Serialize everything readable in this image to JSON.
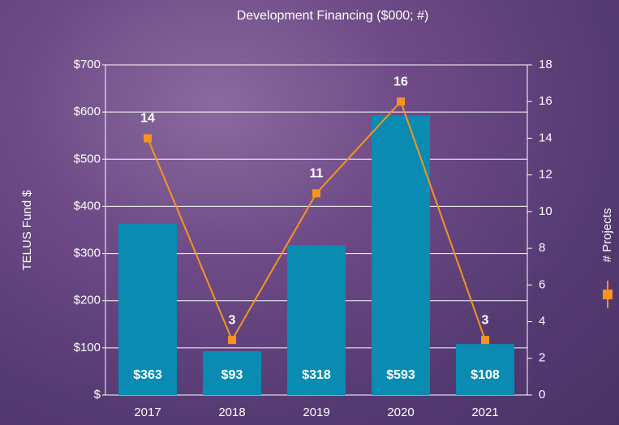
{
  "chart_data": {
    "type": "bar-line",
    "title": "Development Financing ($000; #)",
    "y_label": "TELUS Fund $",
    "categories": [
      "2017",
      "2018",
      "2019",
      "2020",
      "2021"
    ],
    "series": [
      {
        "type": "bar",
        "color": "#0a8bb2",
        "values": [
          363,
          93,
          318,
          593,
          108
        ],
        "value_labels": [
          "$363",
          "$93",
          "$318",
          "$593",
          "$108"
        ]
      },
      {
        "name": "# Projects",
        "type": "line",
        "axis": "y2",
        "color": "#f7941d",
        "values": [
          14,
          3,
          11,
          16,
          3
        ]
      }
    ],
    "ylim": [
      0,
      700
    ],
    "yticks": [
      {
        "value": 0,
        "label": "$"
      },
      {
        "value": 100,
        "label": "$100"
      },
      {
        "value": 200,
        "label": "$200"
      },
      {
        "value": 300,
        "label": "$300"
      },
      {
        "value": 400,
        "label": "$400"
      },
      {
        "value": 500,
        "label": "$500"
      },
      {
        "value": 600,
        "label": "$600"
      },
      {
        "value": 700,
        "label": "$700"
      }
    ],
    "y2lim": [
      0,
      18
    ],
    "y2ticks": [
      0,
      2,
      4,
      6,
      8,
      10,
      12,
      14,
      16,
      18
    ],
    "grid": true
  }
}
